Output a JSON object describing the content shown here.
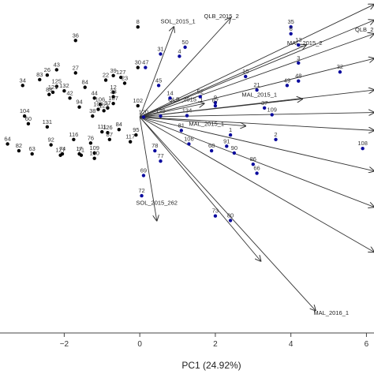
{
  "chart_data": {
    "type": "scatter",
    "title": "",
    "xlabel": "PC1 (24.92%)",
    "ylabel": "",
    "xlim": [
      -3.7,
      6.2
    ],
    "ylim": [
      -4.8,
      2.6
    ],
    "grid": false,
    "x_ticks": [
      -2,
      0,
      2,
      4,
      6
    ],
    "colors": {
      "group_a": "#000000",
      "group_b": "#0a0a9e",
      "arrow": "#333333",
      "frame": "#444444"
    },
    "series": [
      {
        "color": "#000000",
        "points": [
          {
            "label": "36",
            "x": -1.7,
            "y": 1.7
          },
          {
            "label": "43",
            "x": -2.2,
            "y": 1.05
          },
          {
            "label": "26",
            "x": -2.45,
            "y": 0.93
          },
          {
            "label": "83",
            "x": -2.65,
            "y": 0.83
          },
          {
            "label": "125",
            "x": -2.2,
            "y": 0.68
          },
          {
            "label": "27",
            "x": -1.7,
            "y": 0.98
          },
          {
            "label": "84",
            "x": -1.45,
            "y": 0.66
          },
          {
            "label": "132",
            "x": -2.0,
            "y": 0.58
          },
          {
            "label": "121",
            "x": -2.3,
            "y": 0.55
          },
          {
            "label": "88",
            "x": -2.4,
            "y": 0.5
          },
          {
            "label": "42",
            "x": -1.85,
            "y": 0.42
          },
          {
            "label": "34",
            "x": -3.1,
            "y": 0.7
          },
          {
            "label": "94",
            "x": -1.6,
            "y": 0.22
          },
          {
            "label": "44",
            "x": -1.2,
            "y": 0.42
          },
          {
            "label": "106",
            "x": -1.05,
            "y": 0.28
          },
          {
            "label": "97",
            "x": -0.85,
            "y": 0.2
          },
          {
            "label": "107",
            "x": -0.7,
            "y": 0.3
          },
          {
            "label": "103",
            "x": -1.1,
            "y": 0.17
          },
          {
            "label": "123",
            "x": -0.95,
            "y": 0.14
          },
          {
            "label": "64",
            "x": -3.5,
            "y": -0.6
          },
          {
            "label": "82",
            "x": -3.2,
            "y": -0.75
          },
          {
            "label": "63",
            "x": -2.85,
            "y": -0.82
          },
          {
            "label": "92",
            "x": -2.35,
            "y": -0.62
          },
          {
            "label": "131",
            "x": -2.45,
            "y": -0.22
          },
          {
            "label": "60",
            "x": -2.95,
            "y": -0.15
          },
          {
            "label": "104",
            "x": -3.05,
            "y": 0.02
          },
          {
            "label": "38",
            "x": -1.25,
            "y": 0.02
          },
          {
            "label": "116",
            "x": -1.75,
            "y": -0.5
          },
          {
            "label": "76",
            "x": -1.3,
            "y": -0.58
          },
          {
            "label": "111",
            "x": -1.0,
            "y": -0.33
          },
          {
            "label": "126",
            "x": -0.85,
            "y": -0.35
          },
          {
            "label": "87",
            "x": -0.8,
            "y": -0.5
          },
          {
            "label": "84",
            "x": -0.55,
            "y": -0.28
          },
          {
            "label": "117",
            "x": -0.25,
            "y": -0.55
          },
          {
            "label": "74",
            "x": -2.05,
            "y": -0.82
          },
          {
            "label": "127",
            "x": -2.1,
            "y": -0.85
          },
          {
            "label": "71",
            "x": -1.55,
            "y": -0.85
          },
          {
            "label": "17",
            "x": -1.6,
            "y": -0.82
          },
          {
            "label": "109",
            "x": -1.2,
            "y": -0.8
          },
          {
            "label": "130",
            "x": -1.2,
            "y": -0.92
          },
          {
            "label": "39",
            "x": -0.7,
            "y": 0.92
          },
          {
            "label": "127",
            "x": -0.5,
            "y": 0.88
          },
          {
            "label": "22",
            "x": -0.9,
            "y": 0.82
          },
          {
            "label": "23",
            "x": -0.4,
            "y": 0.75
          },
          {
            "label": "12",
            "x": -0.7,
            "y": 0.55
          },
          {
            "label": "33",
            "x": -0.7,
            "y": 0.45
          },
          {
            "label": "8",
            "x": -0.05,
            "y": 2.0
          },
          {
            "label": "30",
            "x": -0.05,
            "y": 1.1
          },
          {
            "label": "102",
            "x": -0.05,
            "y": 0.25
          },
          {
            "label": "95",
            "x": -0.1,
            "y": -0.4
          }
        ]
      },
      {
        "color": "#0a0a9e",
        "points": [
          {
            "label": "35",
            "x": 4.0,
            "y": 2.0
          },
          {
            "label": "6",
            "x": 4.0,
            "y": 1.85
          },
          {
            "label": "13",
            "x": 4.2,
            "y": 1.6
          },
          {
            "label": "10",
            "x": 2.8,
            "y": 0.9
          },
          {
            "label": "3",
            "x": 4.2,
            "y": 1.2
          },
          {
            "label": "32",
            "x": 5.3,
            "y": 1.0
          },
          {
            "label": "48",
            "x": 4.2,
            "y": 0.8
          },
          {
            "label": "49",
            "x": 3.9,
            "y": 0.7
          },
          {
            "label": "21",
            "x": 3.1,
            "y": 0.6
          },
          {
            "label": "37",
            "x": 3.3,
            "y": 0.2
          },
          {
            "label": "109",
            "x": 3.5,
            "y": 0.05
          },
          {
            "label": "2",
            "x": 3.6,
            "y": -0.5
          },
          {
            "label": "108",
            "x": 5.9,
            "y": -0.7
          },
          {
            "label": "86",
            "x": 3.0,
            "y": -1.05
          },
          {
            "label": "66",
            "x": 3.1,
            "y": -1.25
          },
          {
            "label": "73",
            "x": 2.0,
            "y": -2.2
          },
          {
            "label": "80",
            "x": 2.4,
            "y": -2.3
          },
          {
            "label": "50",
            "x": 1.2,
            "y": 1.55
          },
          {
            "label": "4",
            "x": 1.05,
            "y": 1.35
          },
          {
            "label": "31",
            "x": 0.55,
            "y": 1.4
          },
          {
            "label": "47",
            "x": 0.15,
            "y": 1.1
          },
          {
            "label": "45",
            "x": 0.5,
            "y": 0.7
          },
          {
            "label": "14",
            "x": 0.8,
            "y": 0.42
          },
          {
            "label": "9",
            "x": 2.0,
            "y": 0.32
          },
          {
            "label": "67",
            "x": 2.0,
            "y": 0.25
          },
          {
            "label": "52",
            "x": 1.6,
            "y": 0.45
          },
          {
            "label": "129",
            "x": 0.55,
            "y": 0.02
          },
          {
            "label": "134",
            "x": 1.25,
            "y": 0.03
          },
          {
            "label": "81",
            "x": 1.1,
            "y": -0.3
          },
          {
            "label": "68",
            "x": 1.9,
            "y": -0.75
          },
          {
            "label": "91",
            "x": 2.3,
            "y": -0.65
          },
          {
            "label": "90",
            "x": 2.5,
            "y": -0.8
          },
          {
            "label": "106",
            "x": 1.3,
            "y": -0.6
          },
          {
            "label": "78",
            "x": 0.4,
            "y": -0.75
          },
          {
            "label": "77",
            "x": 0.55,
            "y": -0.98
          },
          {
            "label": "69",
            "x": 0.1,
            "y": -1.3
          },
          {
            "label": "72",
            "x": 0.05,
            "y": -1.75
          },
          {
            "label": "120",
            "x": 0.1,
            "y": 0.0
          },
          {
            "label": "1",
            "x": 2.4,
            "y": -0.4
          }
        ]
      }
    ],
    "loadings": [
      {
        "label": "SOL_2015_1",
        "x": 0.9,
        "y": 2.0,
        "label_x": 0.55,
        "label_y": 2.08
      },
      {
        "label": "QLB_2015_2",
        "x": 2.4,
        "y": 2.2,
        "label_x": 1.7,
        "label_y": 2.2
      },
      {
        "label": "QLB_2...",
        "x": 6.2,
        "y": 1.85,
        "label_x": 5.7,
        "label_y": 1.9
      },
      {
        "label": "MAL_2015_2",
        "x": 4.4,
        "y": 1.6,
        "label_x": 3.9,
        "label_y": 1.6
      },
      {
        "label": "QLB_2015_1",
        "x": 1.7,
        "y": 0.3,
        "label_x": 0.75,
        "label_y": 0.35
      },
      {
        "label": "MAL_2015_1",
        "x": 4.3,
        "y": 0.4,
        "label_x": 2.7,
        "label_y": 0.45
      },
      {
        "label": "MAL_2015_1",
        "x": 2.8,
        "y": -0.2,
        "label_x": 1.3,
        "label_y": -0.2
      },
      {
        "label": "SOL_2015_262",
        "x": 0.45,
        "y": -2.3,
        "label_x": -0.1,
        "label_y": -1.95
      },
      {
        "label": "MAL_2016_1",
        "x": 4.65,
        "y": -4.3,
        "label_x": 4.6,
        "label_y": -4.4
      },
      {
        "label": "",
        "x": 6.2,
        "y": 2.5
      },
      {
        "label": "",
        "x": 6.2,
        "y": 2.15
      },
      {
        "label": "",
        "x": 6.2,
        "y": 1.3
      },
      {
        "label": "",
        "x": 6.2,
        "y": 0.6
      },
      {
        "label": "",
        "x": 6.2,
        "y": 0.1
      },
      {
        "label": "",
        "x": 6.2,
        "y": -0.3
      },
      {
        "label": "",
        "x": 6.2,
        "y": -1.2
      },
      {
        "label": "",
        "x": 6.2,
        "y": -2.0
      },
      {
        "label": "",
        "x": 6.2,
        "y": -3.0
      },
      {
        "label": "",
        "x": 3.2,
        "y": -3.2
      }
    ]
  }
}
